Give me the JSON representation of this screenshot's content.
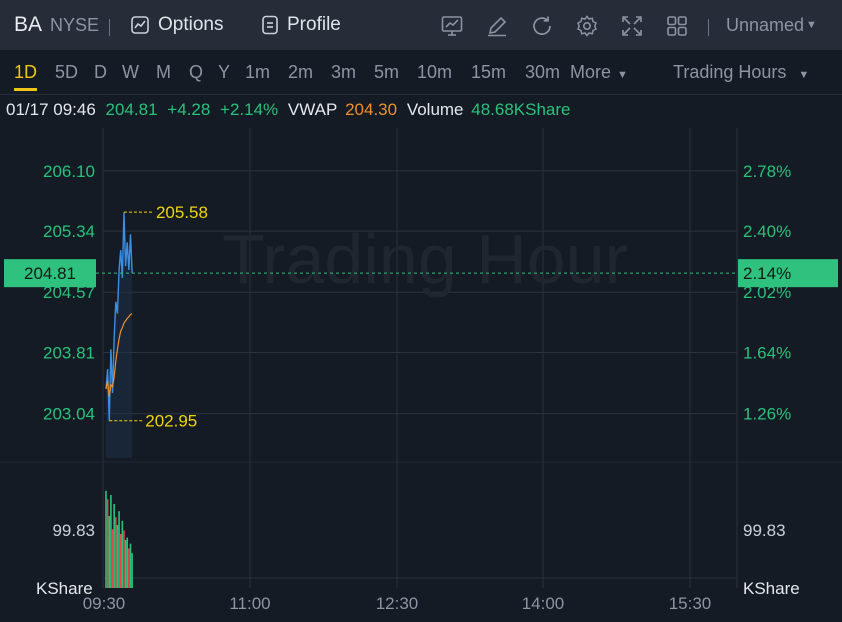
{
  "header": {
    "symbol": "BA",
    "exchange": "NYSE",
    "options_label": "Options",
    "profile_label": "Profile",
    "layout_name": "Unnamed"
  },
  "timeframes": {
    "items": [
      "1D",
      "5D",
      "D",
      "W",
      "M",
      "Q",
      "Y",
      "1m",
      "2m",
      "3m",
      "5m",
      "10m",
      "15m",
      "30m"
    ],
    "active": "1D",
    "more_label": "More",
    "session_label": "Trading Hours"
  },
  "quote": {
    "datetime": "01/17 09:46",
    "price": "204.81",
    "change": "+4.28",
    "change_pct": "+2.14%",
    "vwap_label": "VWAP",
    "vwap": "204.30",
    "volume_label": "Volume",
    "volume": "48.68KShare"
  },
  "colors": {
    "up": "#28c27a",
    "down": "#e5484d",
    "price_line": "#3a8ee6",
    "vwap_line": "#f0902b",
    "annotation": "#f0d40c",
    "background": "#151b24"
  },
  "chart_data": {
    "type": "line",
    "watermark": "Trading Hour",
    "x_ticks": [
      "09:30",
      "11:00",
      "12:30",
      "14:00",
      "15:30"
    ],
    "price_ticks": [
      "206.10",
      "205.34",
      "204.57",
      "203.81",
      "203.04"
    ],
    "pct_ticks": [
      "2.78%",
      "2.40%",
      "2.02%",
      "1.64%",
      "1.26%"
    ],
    "price_range": [
      202.48,
      206.64
    ],
    "current_price_label": "204.81",
    "current_pct_label": "2.14%",
    "high_label": "205.58",
    "low_label": "202.95",
    "volume_tick_label": "99.83",
    "volume_unit_left": "KShare",
    "volume_unit_right": "KShare",
    "volume_range": [
      0,
      200
    ],
    "series": [
      {
        "name": "Price",
        "minute_offsets": [
          0,
          1,
          2,
          3,
          4,
          5,
          6,
          7,
          8,
          9,
          10,
          11,
          12,
          13,
          14,
          15,
          16
        ],
        "values": [
          203.35,
          203.6,
          202.95,
          203.85,
          203.3,
          204.0,
          204.45,
          204.3,
          204.85,
          205.1,
          204.75,
          205.58,
          204.9,
          205.2,
          204.85,
          205.3,
          204.81
        ]
      },
      {
        "name": "VWAP",
        "minute_offsets": [
          0,
          1,
          2,
          3,
          4,
          5,
          6,
          7,
          8,
          9,
          10,
          11,
          12,
          13,
          14,
          15,
          16
        ],
        "values": [
          203.35,
          203.45,
          203.25,
          203.4,
          203.38,
          203.5,
          203.7,
          203.85,
          203.98,
          204.08,
          204.12,
          204.18,
          204.21,
          204.24,
          204.26,
          204.29,
          204.3
        ]
      }
    ],
    "volume_bars": [
      {
        "value": 162,
        "dir": "up"
      },
      {
        "value": 148,
        "dir": "down"
      },
      {
        "value": 120,
        "dir": "up"
      },
      {
        "value": 155,
        "dir": "up"
      },
      {
        "value": 98,
        "dir": "down"
      },
      {
        "value": 140,
        "dir": "up"
      },
      {
        "value": 118,
        "dir": "down"
      },
      {
        "value": 105,
        "dir": "up"
      },
      {
        "value": 128,
        "dir": "up"
      },
      {
        "value": 90,
        "dir": "down"
      },
      {
        "value": 112,
        "dir": "up"
      },
      {
        "value": 96,
        "dir": "down"
      },
      {
        "value": 80,
        "dir": "up"
      },
      {
        "value": 84,
        "dir": "up"
      },
      {
        "value": 66,
        "dir": "down"
      },
      {
        "value": 74,
        "dir": "up"
      },
      {
        "value": 58,
        "dir": "up"
      }
    ]
  }
}
